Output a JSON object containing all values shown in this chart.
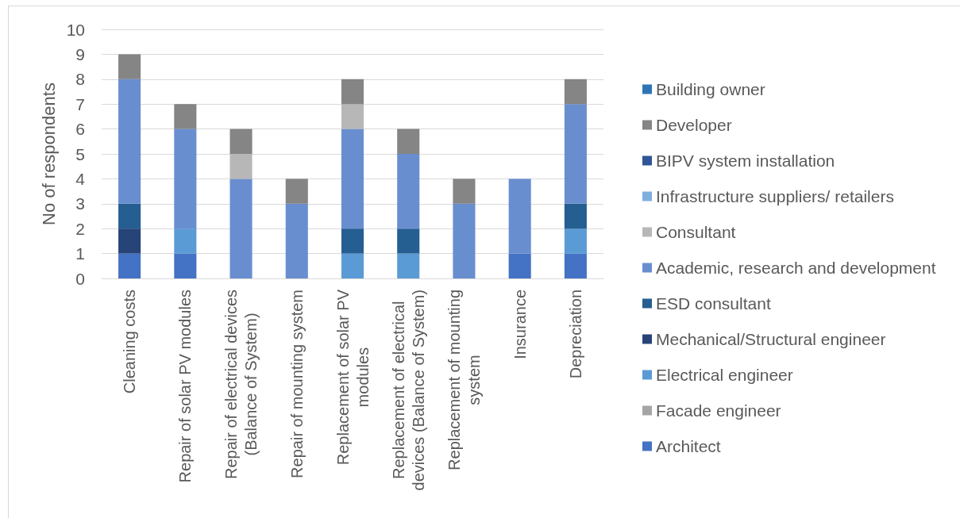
{
  "chart_data": {
    "type": "bar",
    "stacked": true,
    "ylabel": "No of respondents",
    "categories": [
      "Cleaning costs",
      "Repair of solar PV modules",
      "Repair of electrical devices (Balance of System)",
      "Repair of mounting system",
      "Replacement of solar PV modules",
      "Replacement of electrical devices (Balance of System)",
      "Replacement of mounting system",
      "Insurance",
      "Depreciation"
    ],
    "series": [
      {
        "name": "Architect",
        "color": "#4472c4",
        "values": [
          1,
          1,
          0,
          0,
          0,
          0,
          0,
          1,
          1
        ]
      },
      {
        "name": "Facade engineer",
        "color": "#a5a5a5",
        "values": [
          0,
          0,
          0,
          0,
          0,
          0,
          0,
          0,
          0
        ]
      },
      {
        "name": "Electrical engineer",
        "color": "#5b9bd5",
        "values": [
          0,
          1,
          0,
          0,
          1,
          1,
          0,
          0,
          1
        ]
      },
      {
        "name": "Mechanical/Structural engineer",
        "color": "#264478",
        "values": [
          1,
          0,
          0,
          0,
          0,
          0,
          0,
          0,
          0
        ]
      },
      {
        "name": "ESD consultant",
        "color": "#255e91",
        "values": [
          1,
          0,
          0,
          0,
          1,
          1,
          0,
          0,
          1
        ]
      },
      {
        "name": "Academic, research and development",
        "color": "#698ed0",
        "values": [
          5,
          4,
          4,
          3,
          4,
          3,
          3,
          3,
          4
        ]
      },
      {
        "name": "Consultant",
        "color": "#b7b7b7",
        "values": [
          0,
          0,
          1,
          0,
          1,
          0,
          0,
          0,
          0
        ]
      },
      {
        "name": "Infrastructure suppliers/ retailers",
        "color": "#7fafdd",
        "values": [
          0,
          0,
          0,
          0,
          0,
          0,
          0,
          0,
          0
        ]
      },
      {
        "name": "BIPV system installation",
        "color": "#2f5597",
        "values": [
          0,
          0,
          0,
          0,
          0,
          0,
          0,
          0,
          0
        ]
      },
      {
        "name": "Developer",
        "color": "#858585",
        "values": [
          1,
          1,
          1,
          1,
          1,
          1,
          1,
          0,
          1
        ]
      },
      {
        "name": "Building owner",
        "color": "#2e75b6",
        "values": [
          0,
          0,
          0,
          0,
          0,
          0,
          0,
          0,
          0
        ]
      }
    ],
    "ylim": [
      0,
      10
    ],
    "yticks": [
      0,
      1,
      2,
      3,
      4,
      5,
      6,
      7,
      8,
      9,
      10
    ],
    "grid": "y",
    "legend": "right"
  }
}
